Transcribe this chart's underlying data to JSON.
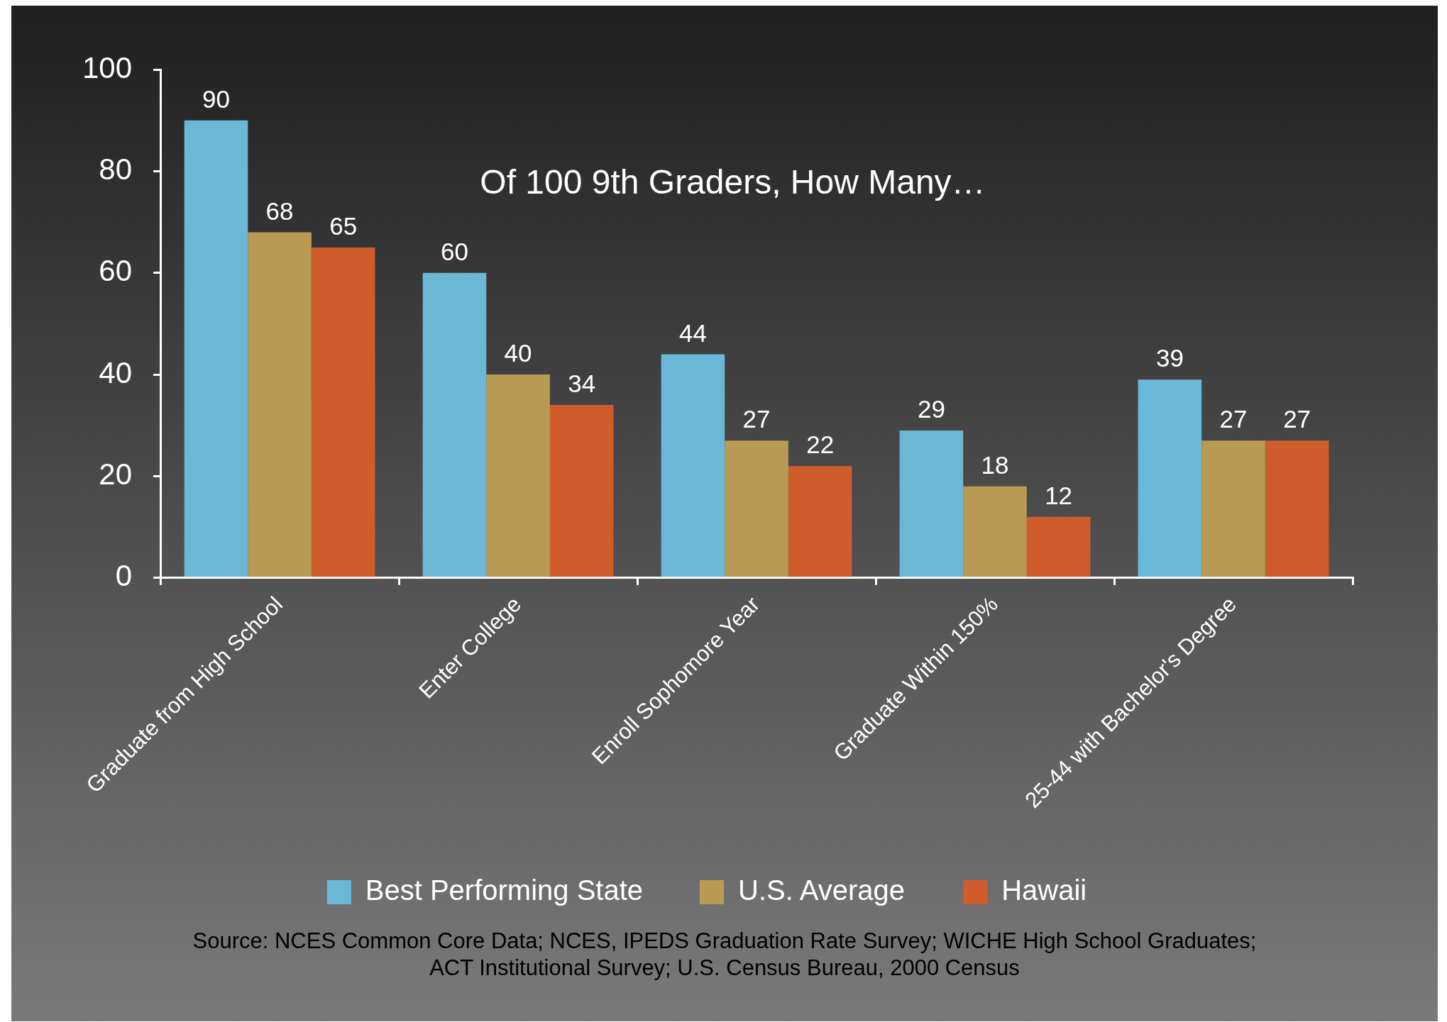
{
  "chart_data": {
    "type": "bar",
    "title": "Of 100 9th Graders, How Many…",
    "categories": [
      "Graduate from High School",
      "Enter College",
      "Enroll Sophomore Year",
      "Graduate Within 150%",
      "25-44 with Bachelor's Degree"
    ],
    "series": [
      {
        "name": "Best Performing State",
        "color": "#6bb7d6",
        "values": [
          90,
          60,
          44,
          29,
          39
        ]
      },
      {
        "name": "U.S. Average",
        "color": "#b89a52",
        "values": [
          68,
          40,
          27,
          18,
          27
        ]
      },
      {
        "name": "Hawaii",
        "color": "#d05c2c",
        "values": [
          65,
          34,
          22,
          12,
          27
        ]
      }
    ],
    "ylim": [
      0,
      100
    ],
    "yticks": [
      0,
      20,
      40,
      60,
      80,
      100
    ],
    "grid": false,
    "data_labels": true,
    "legend": "bottom",
    "annotations": [
      "Source: NCES Common Core Data;  NCES, IPEDS Graduation Rate Survey; WICHE High School Graduates;\nACT Institutional Survey; U.S. Census Bureau, 2000 Census"
    ]
  }
}
